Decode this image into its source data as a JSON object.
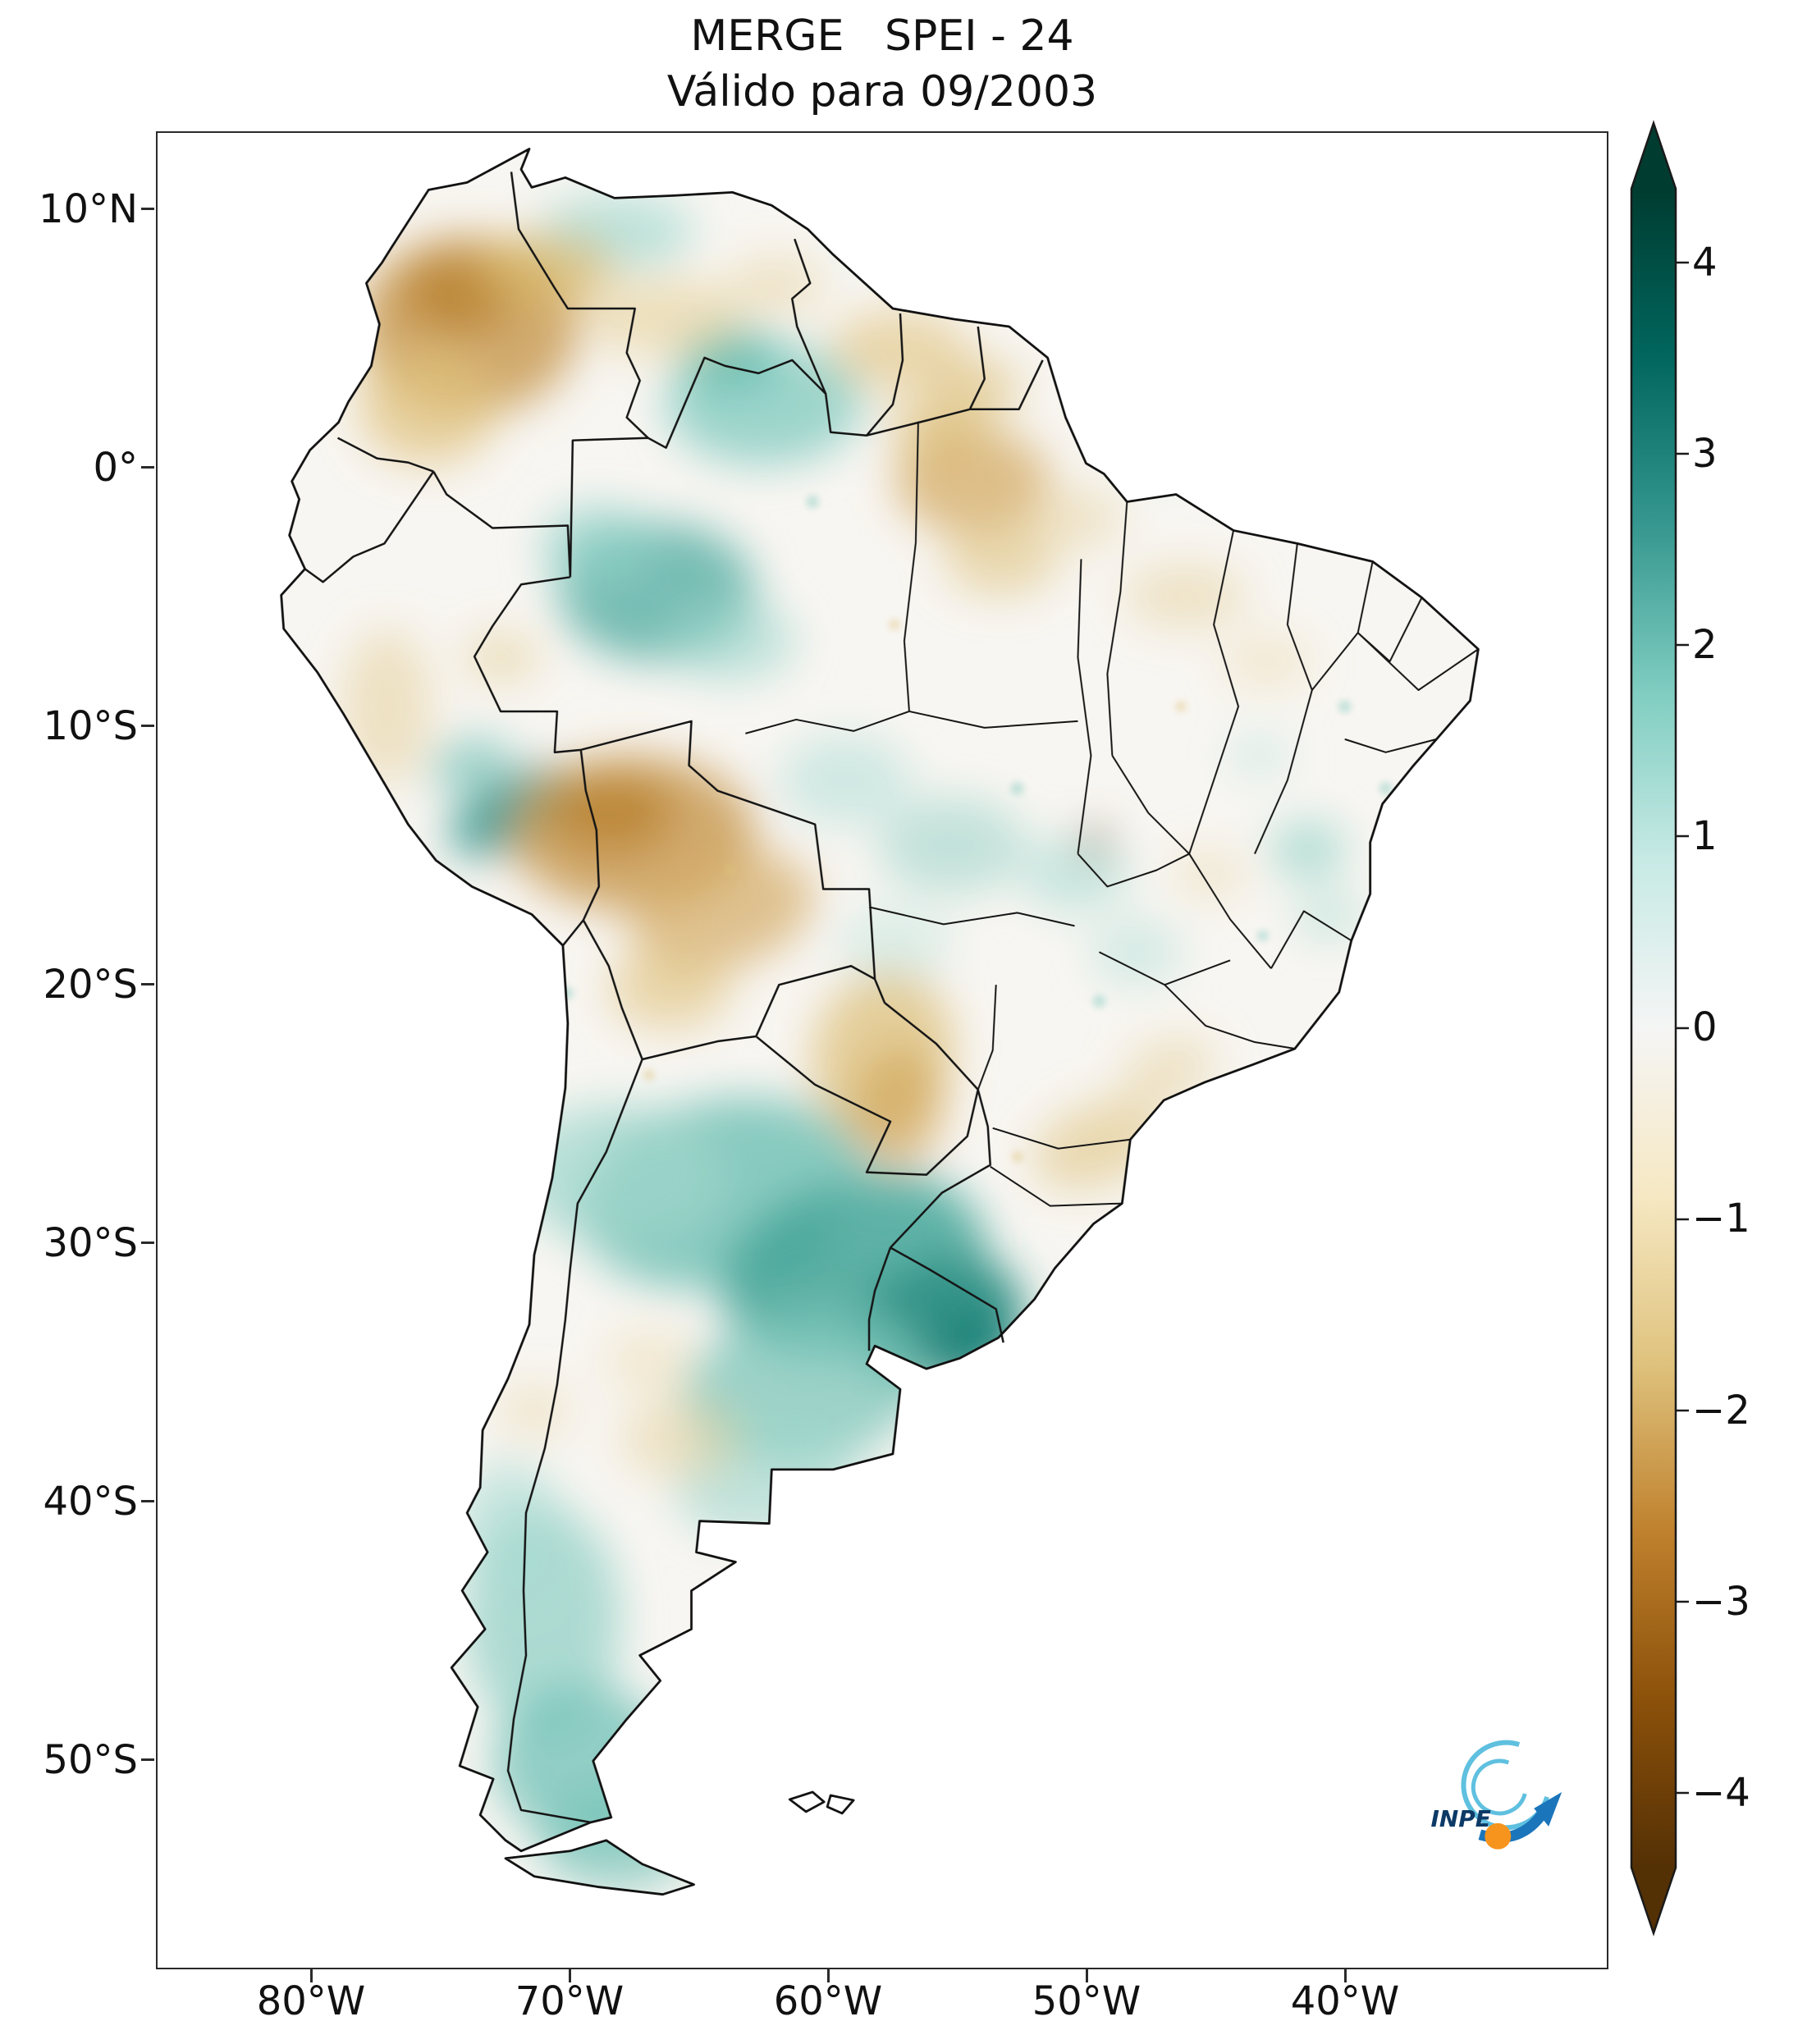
{
  "title": {
    "line1": "MERGE   SPEI - 24",
    "line2": "Válido para 09/2003"
  },
  "map": {
    "region": "South America",
    "product": "MERGE",
    "index": "SPEI",
    "scale_months": 24,
    "valid_for": "09/2003"
  },
  "axes": {
    "lat_ticks": [
      "10°N",
      "0°",
      "10°S",
      "20°S",
      "30°S",
      "40°S",
      "50°S"
    ],
    "lon_ticks": [
      "80°W",
      "70°W",
      "60°W",
      "50°W",
      "40°W"
    ]
  },
  "colorbar": {
    "tick_labels": [
      "4",
      "3",
      "2",
      "1",
      "0",
      "−1",
      "−2",
      "−3",
      "−4"
    ],
    "min": -4,
    "max": 4,
    "extend": "both",
    "colormap": "BrBG",
    "gradient_top_to_bottom": [
      "#003c30",
      "#01665e",
      "#35978f",
      "#80cdc1",
      "#c7eae5",
      "#f5f5f5",
      "#f6e8c3",
      "#dfc27d",
      "#bf812d",
      "#8c510a",
      "#543005"
    ],
    "tip_top_color": "#003c30",
    "tip_bottom_color": "#543005"
  },
  "logo": {
    "text": "INPE",
    "text_color": "#0d3a66",
    "arrow_color": "#1b75bb",
    "swoosh_color": "#5fc0df",
    "ball_color": "#f7941d"
  },
  "chart_data": {
    "type": "heatmap",
    "title": "MERGE SPEI - 24",
    "subtitle": "Válido para 09/2003",
    "variable": "SPEI (Standardized Precipitation-Evapotranspiration Index), 24-month accumulation",
    "region": "South America",
    "x_ticks": [
      "80°W",
      "70°W",
      "60°W",
      "50°W",
      "40°W"
    ],
    "y_ticks": [
      "10°N",
      "0°",
      "10°S",
      "20°S",
      "30°S",
      "40°S",
      "50°S"
    ],
    "colorbar": {
      "colormap": "BrBG",
      "ticks": [
        4,
        3,
        2,
        1,
        0,
        -1,
        -2,
        -3,
        -4
      ],
      "range": [
        -4,
        4
      ],
      "extend": "both"
    },
    "wet_anomalies": [
      {
        "area": "Uruguay / NE Argentina / S Brazil border",
        "approx_spei": 2
      },
      {
        "area": "Central Amazon (Amazonas, Brazil)",
        "approx_spei": 1.5
      },
      {
        "area": "Roraima / far northern Brazil",
        "approx_spei": 1
      },
      {
        "area": "Peru–Bolivia border (SW Amazon fringe)",
        "approx_spei": 1.5
      },
      {
        "area": "Patagonian Andes (S Argentina / Chile)",
        "approx_spei": 1
      }
    ],
    "dry_anomalies": [
      {
        "area": "Central Colombia / W Venezuela",
        "approx_spei": -1.5
      },
      {
        "area": "Bolivia–Acre border (SW Amazon)",
        "approx_spei": -1.5
      },
      {
        "area": "Northern Pará / lower Amazon",
        "approx_spei": -1
      },
      {
        "area": "Paraguay / Mato Grosso do Sul",
        "approx_spei": -1
      },
      {
        "area": "Peruvian coast",
        "approx_spei": -0.5
      }
    ]
  }
}
